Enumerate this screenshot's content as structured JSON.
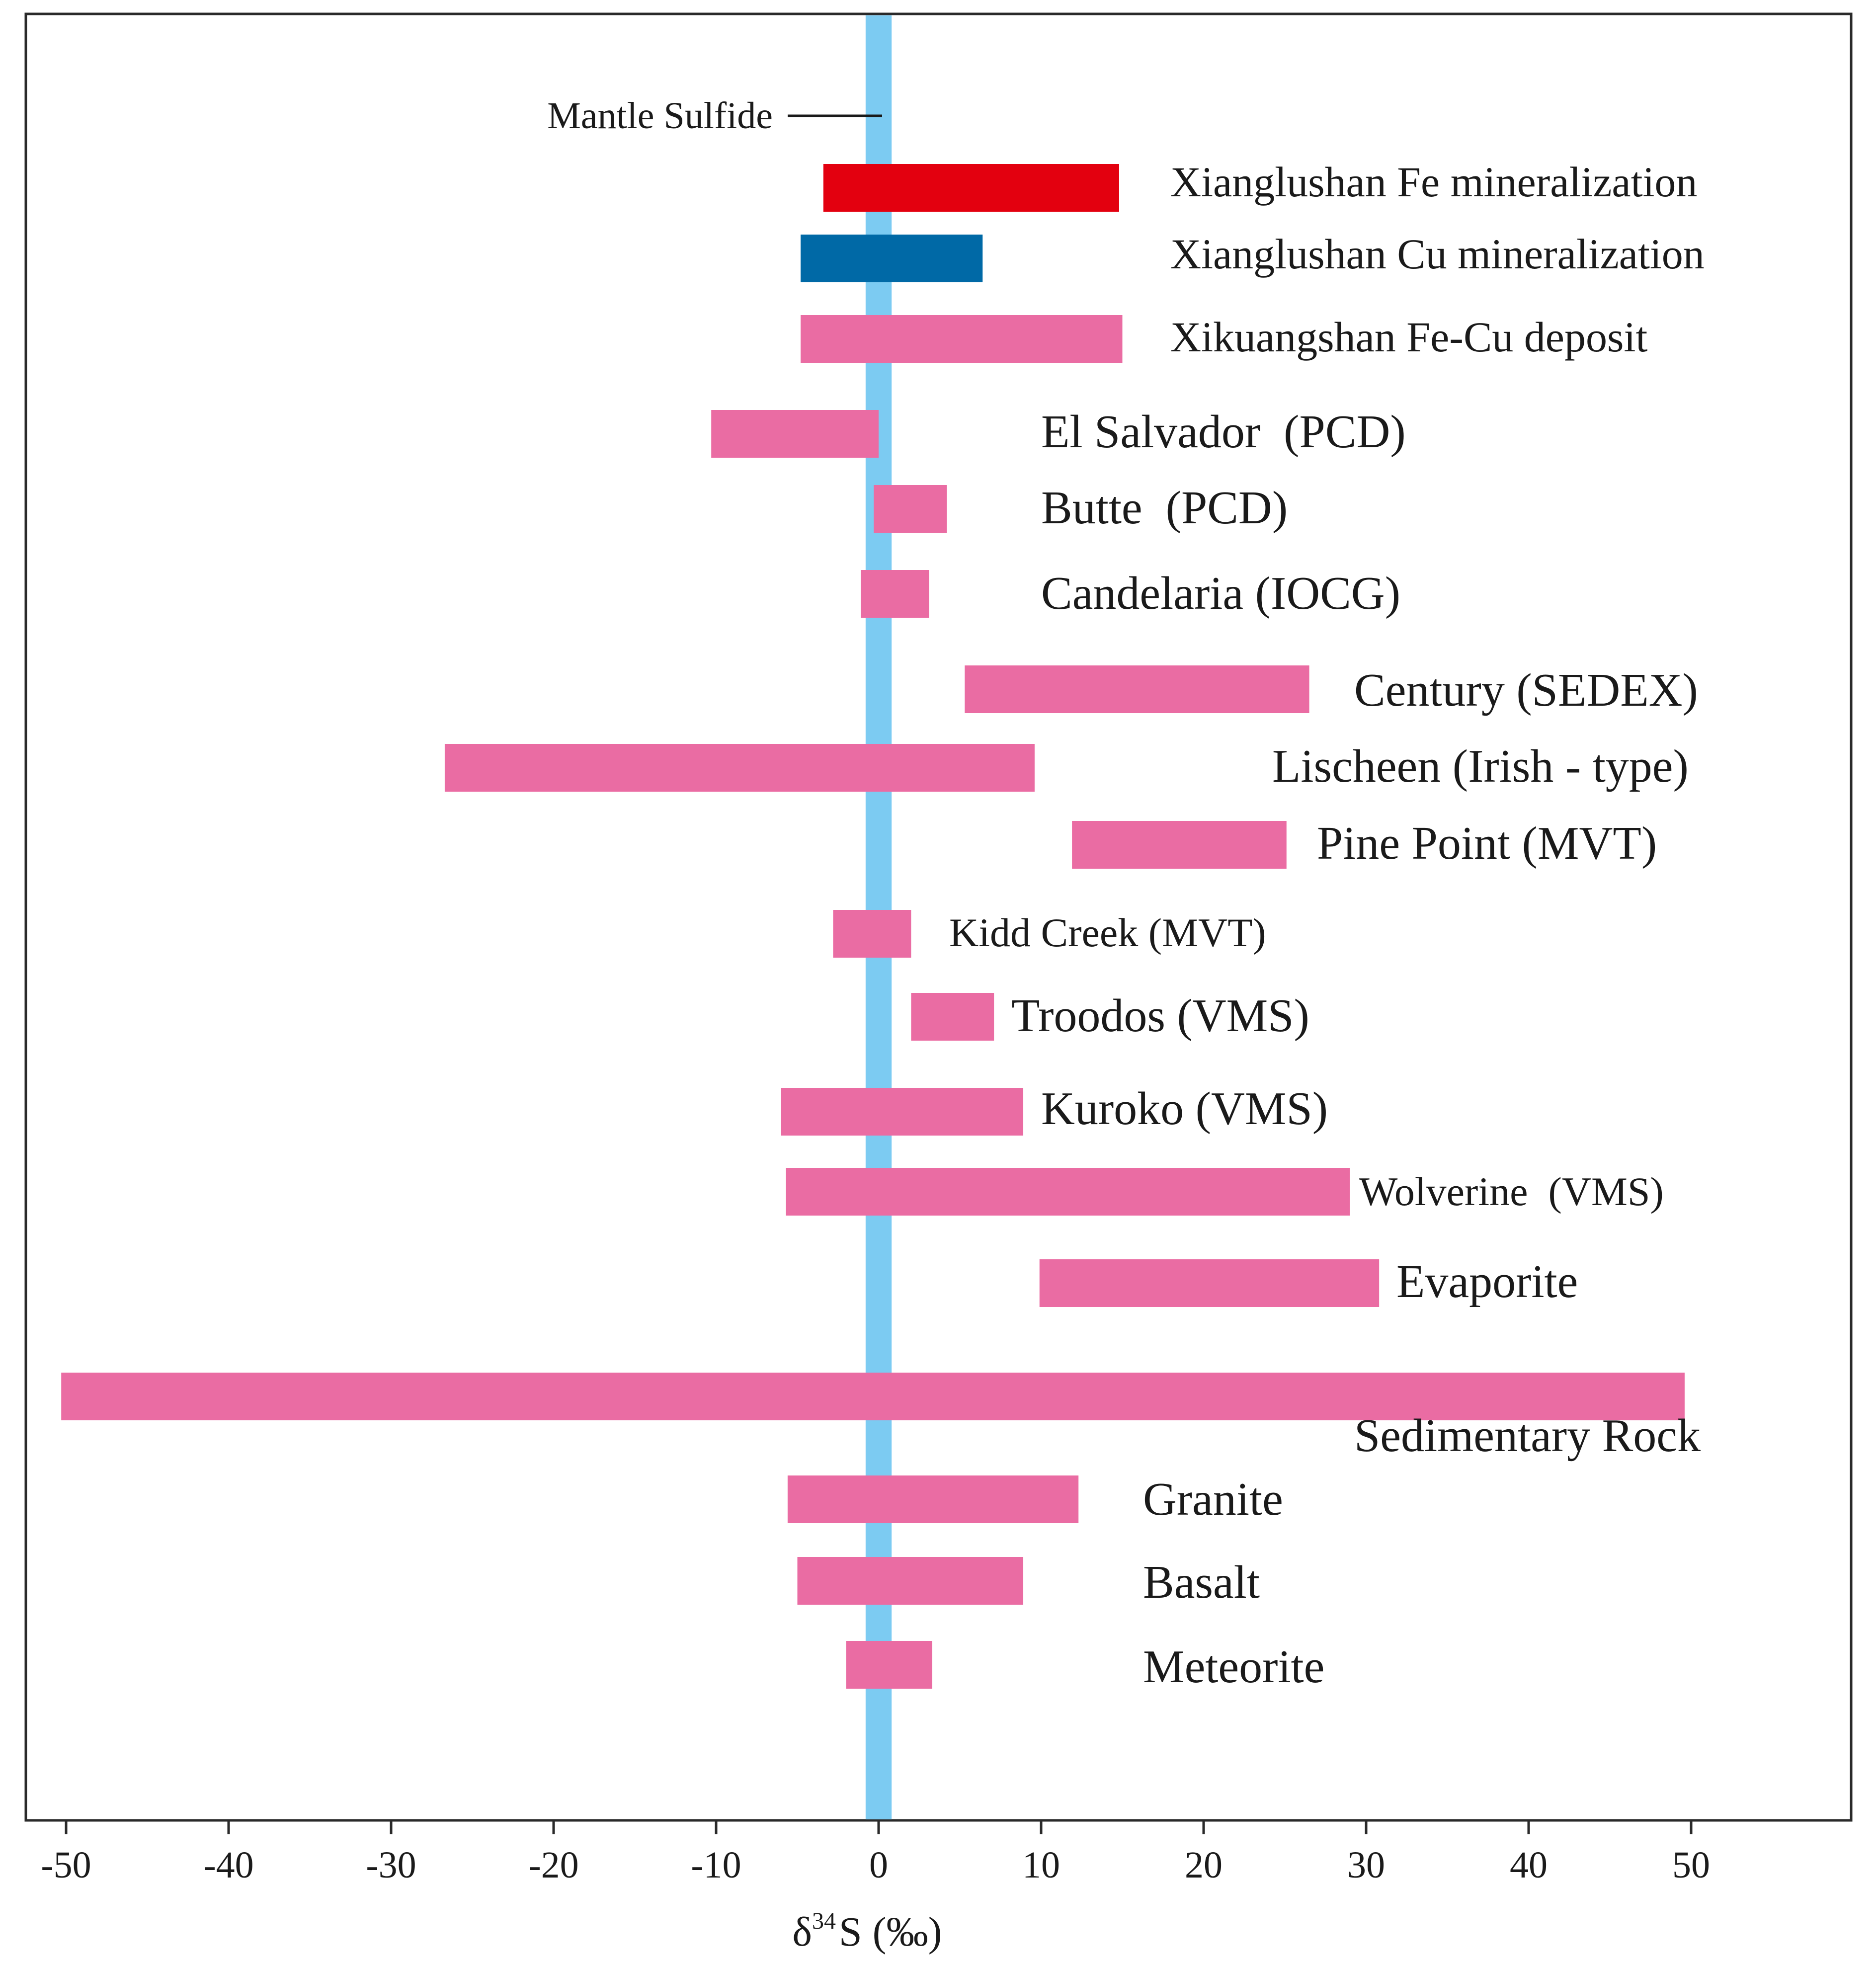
{
  "chart_data": {
    "type": "range-bar",
    "xlabel": "δ34S (‰)",
    "xlabel_parts": {
      "delta": "δ",
      "superscript": "34",
      "rest": "S (‰)"
    },
    "xlim": [
      -52,
      60
    ],
    "xticks": [
      -50,
      -40,
      -30,
      -20,
      -10,
      0,
      10,
      20,
      30,
      40,
      50
    ],
    "xtick_labels": [
      "-50",
      "-40",
      "-30",
      "-20",
      "-10",
      "0",
      "10",
      "20",
      "30",
      "40",
      "50"
    ],
    "reference": {
      "name": "Mantle Sulfide",
      "from": -0.8,
      "to": 0.8,
      "color": "#7ccbf2"
    },
    "series": [
      {
        "name": "Xianglushan Fe mineralization",
        "min": -3.4,
        "max": 14.8,
        "color": "#e3000f"
      },
      {
        "name": "Xianglushan Cu mineralization",
        "min": -4.8,
        "max": 6.4,
        "color": "#0069a6"
      },
      {
        "name": "Xikuangshan Fe-Cu deposit",
        "min": -4.8,
        "max": 15.0,
        "color": "#ea6ca3"
      },
      {
        "name": "El Salvador  (PCD)",
        "min": -10.3,
        "max": 0.0,
        "color": "#ea6ca3"
      },
      {
        "name": "Butte  (PCD)",
        "min": -0.3,
        "max": 4.2,
        "color": "#ea6ca3"
      },
      {
        "name": "Candelaria (IOCG)",
        "min": -1.1,
        "max": 3.1,
        "color": "#ea6ca3"
      },
      {
        "name": "Century (SEDEX)",
        "min": 5.3,
        "max": 26.5,
        "color": "#ea6ca3"
      },
      {
        "name": "Lischeen (Irish - type)",
        "min": -26.7,
        "max": 9.6,
        "color": "#ea6ca3"
      },
      {
        "name": "Pine Point (MVT)",
        "min": 11.9,
        "max": 25.1,
        "color": "#ea6ca3"
      },
      {
        "name": "Kidd Creek (MVT)",
        "min": -2.8,
        "max": 2.0,
        "color": "#ea6ca3"
      },
      {
        "name": "Troodos (VMS)",
        "min": 2.0,
        "max": 7.1,
        "color": "#ea6ca3"
      },
      {
        "name": "Kuroko (VMS)",
        "min": -6.0,
        "max": 8.9,
        "color": "#ea6ca3"
      },
      {
        "name": "Wolverine  (VMS)",
        "min": -5.7,
        "max": 29.0,
        "color": "#ea6ca3"
      },
      {
        "name": "Evaporite",
        "min": 9.9,
        "max": 30.8,
        "color": "#ea6ca3"
      },
      {
        "name": "Sedimentary Rock",
        "min": -50.3,
        "max": 49.6,
        "color": "#ea6ca3"
      },
      {
        "name": "Granite",
        "min": -5.6,
        "max": 12.3,
        "color": "#ea6ca3"
      },
      {
        "name": "Basalt",
        "min": -5.0,
        "max": 8.9,
        "color": "#ea6ca3"
      },
      {
        "name": "Meteorite",
        "min": -2.0,
        "max": 3.3,
        "color": "#ea6ca3"
      }
    ]
  }
}
